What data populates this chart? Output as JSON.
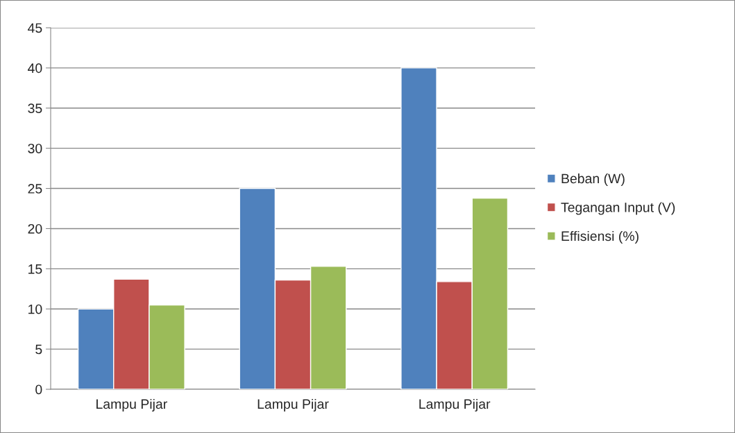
{
  "chart_data": {
    "type": "bar",
    "categories": [
      "Lampu Pijar",
      "Lampu Pijar",
      "Lampu Pijar"
    ],
    "series": [
      {
        "name": "Beban (W)",
        "color": "#4f81bd",
        "values": [
          10,
          25,
          40
        ]
      },
      {
        "name": "Tegangan Input (V)",
        "color": "#c0504d",
        "values": [
          13.7,
          13.6,
          13.4
        ]
      },
      {
        "name": "Effisiensi (%)",
        "color": "#9bbb59",
        "values": [
          10.5,
          15.3,
          23.8
        ]
      }
    ],
    "ylim": [
      0,
      45
    ],
    "yticks": [
      0,
      5,
      10,
      15,
      20,
      25,
      30,
      35,
      40,
      45
    ],
    "grid": "y",
    "legend": "right"
  }
}
